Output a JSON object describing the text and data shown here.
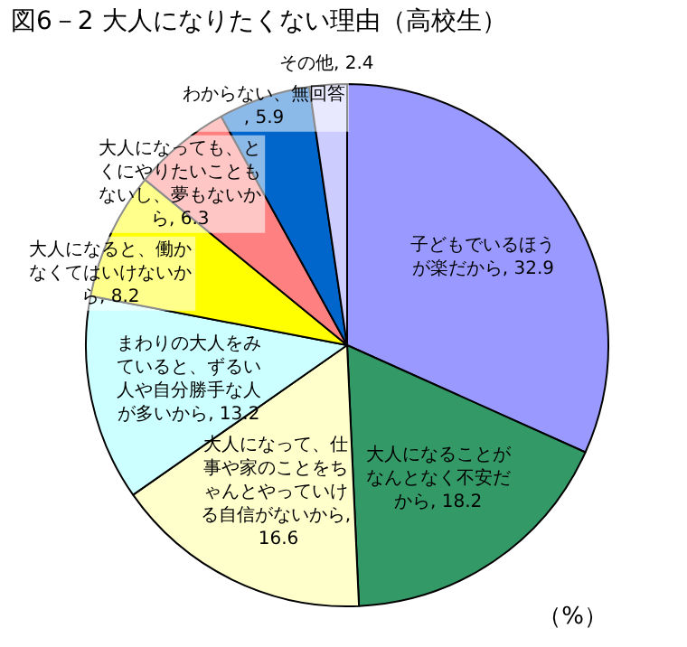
{
  "chart_data": {
    "type": "pie",
    "title": "図6－2  大人になりたくない理由（高校生）",
    "categories": [
      "子どもでいるほうが楽だから",
      "大人になることがなんとなく不安だから",
      "大人になって、仕事や家のことをちゃんとやっていける自信がないから",
      "まわりの大人をみていると、ずるい人や自分勝手な人が多いから",
      "大人になると、働かなくてはいけないから",
      "大人になっても、とくにやりたいこともないし、夢もないから",
      "わからない、無回答",
      "その他"
    ],
    "values": [
      32.9,
      18.2,
      16.6,
      13.2,
      8.2,
      6.3,
      5.9,
      2.4
    ],
    "colors": [
      "#9999ff",
      "#339966",
      "#ffffcc",
      "#ccffff",
      "#ffff00",
      "#ff8080",
      "#0066cc",
      "#ccccff"
    ],
    "value_labels": [
      ", 32.9",
      ", 18.2",
      ", 16.6",
      ", 13.2",
      ", 8.2",
      ", 6.3",
      ", 5.9",
      ", 2.4"
    ],
    "legend": false,
    "annotations": [
      "（%）"
    ]
  }
}
